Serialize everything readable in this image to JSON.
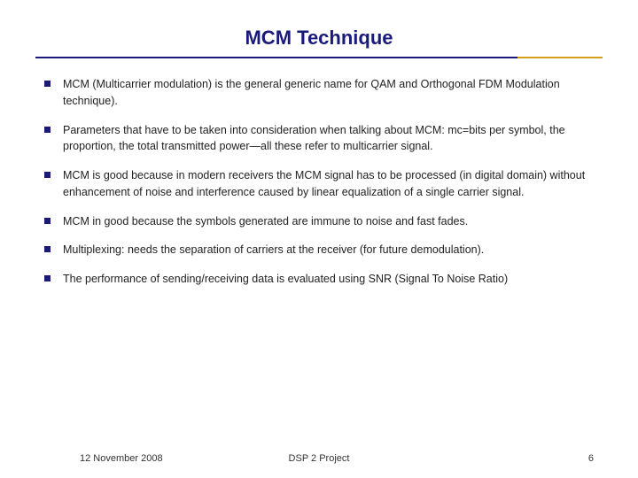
{
  "title": "MCM Technique",
  "bullets": [
    "MCM (Multicarrier modulation) is the general generic name for QAM and Orthogonal FDM Modulation technique).",
    "Parameters that have to be taken into consideration when talking about MCM: mc=bits per symbol, the proportion, the total transmitted power—all these refer to multicarrier signal.",
    "MCM is good because in modern receivers the MCM signal has to be processed (in digital domain) without enhancement of noise and  interference caused by linear equalization of a single carrier signal.",
    "MCM in good because the symbols generated are immune to noise and fast fades.",
    "Multiplexing: needs the separation of carriers at the receiver (for future demodulation).",
    "The performance of sending/receiving data is evaluated using SNR (Signal To Noise Ratio)"
  ],
  "footer": {
    "date": "12 November 2008",
    "center": "DSP 2 Project",
    "page": "6"
  },
  "colors": {
    "title_color": "#1a1a7a",
    "bullet_marker": "#1a1a7a",
    "divider_main": "#1a1a7a",
    "divider_accent": "#d4a017",
    "text": "#222222",
    "background": "#ffffff"
  },
  "typography": {
    "title_fontsize": 22,
    "body_fontsize": 12.5,
    "footer_fontsize": 11,
    "title_font": "Comic Sans MS",
    "body_font": "Verdana"
  }
}
